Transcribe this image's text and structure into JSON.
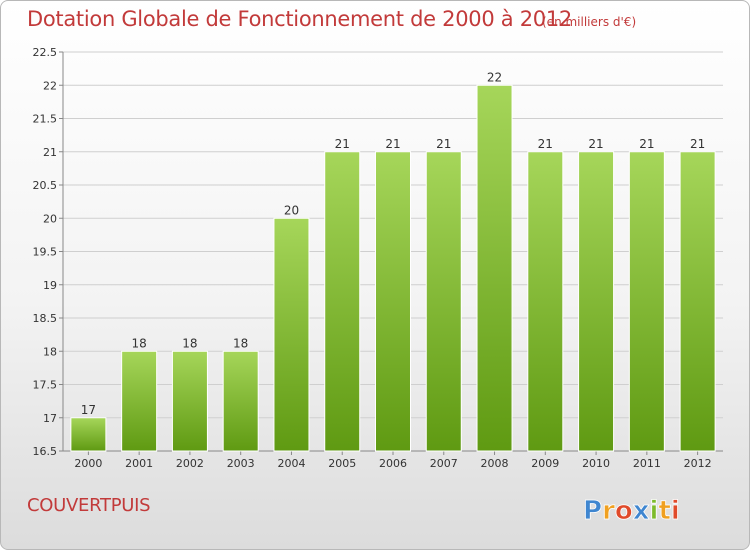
{
  "title": "Dotation Globale de Fonctionnement de 2000 à 2012",
  "unit": "(en milliers d'€)",
  "place": "COUVERTPUIS",
  "logo": "Proxiti",
  "colors": {
    "title": "#c23a3a",
    "bar_light": "#a6d65a",
    "bar_dark": "#5f9a12"
  },
  "chart_data": {
    "type": "bar",
    "title": "Dotation Globale de Fonctionnement de 2000 à 2012",
    "subtitle": "(en milliers d'€)",
    "xlabel": "",
    "ylabel": "",
    "categories": [
      "2000",
      "2001",
      "2002",
      "2003",
      "2004",
      "2005",
      "2006",
      "2007",
      "2008",
      "2009",
      "2010",
      "2011",
      "2012"
    ],
    "values": [
      17,
      18,
      18,
      18,
      20,
      21,
      21,
      21,
      22,
      21,
      21,
      21,
      21
    ],
    "ylim": [
      16.5,
      22.5
    ],
    "yticks": [
      16.5,
      17,
      17.5,
      18,
      18.5,
      19,
      19.5,
      20,
      20.5,
      21,
      21.5,
      22,
      22.5
    ],
    "ytick_labels": [
      "16.5",
      "17",
      "17.5",
      "18",
      "18.5",
      "19",
      "19.5",
      "20",
      "20.5",
      "21",
      "21.5",
      "22",
      "22.5"
    ],
    "grid": true,
    "data_labels": true
  }
}
